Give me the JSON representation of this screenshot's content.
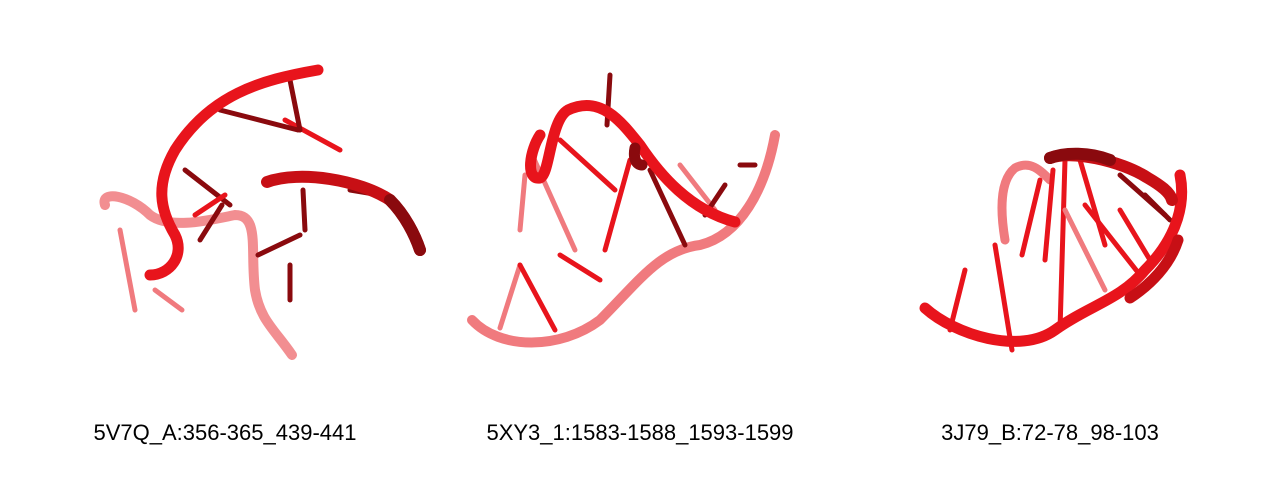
{
  "figures": [
    {
      "label": "5V7Q_A:356-365_439-441",
      "color_main": "#e8141c",
      "color_dark": "#8a0a0e",
      "color_light": "#f07a7e"
    },
    {
      "label": "5XY3_1:1583-1588_1593-1599",
      "color_main": "#e8141c",
      "color_dark": "#8a0a0e",
      "color_light": "#f07a7e"
    },
    {
      "label": "3J79_B:72-78_98-103",
      "color_main": "#e8141c",
      "color_dark": "#8a0a0e",
      "color_light": "#f07a7e"
    }
  ]
}
